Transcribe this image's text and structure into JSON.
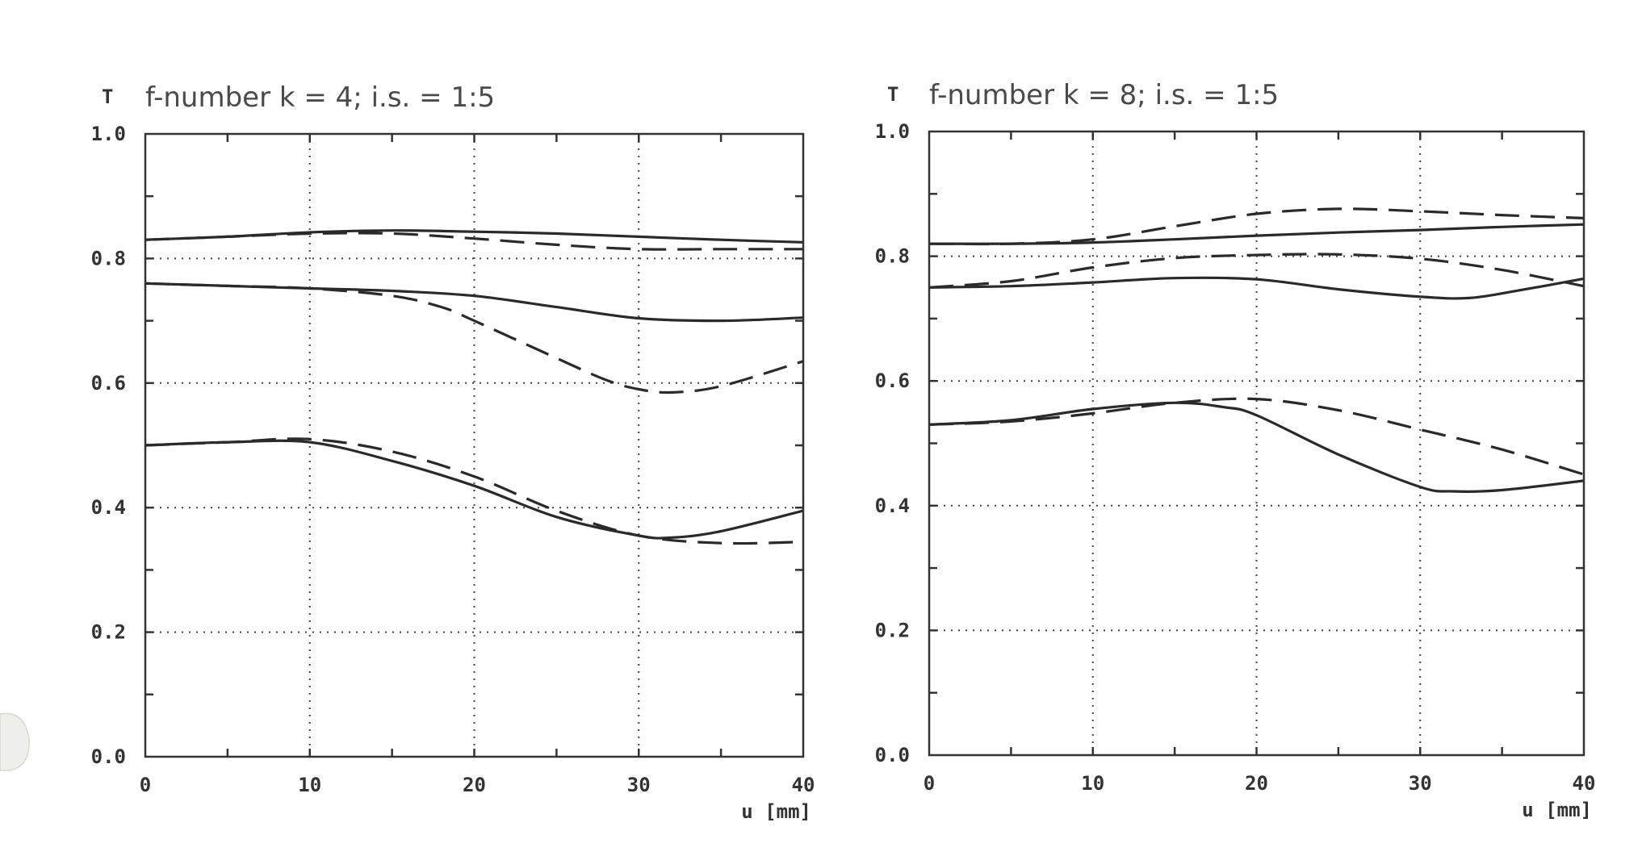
{
  "chart_data": [
    {
      "type": "line",
      "title": "f-number k = 4; i.s. = 1:5",
      "ylabel": "T",
      "xlabel": "u [mm]",
      "xlim": [
        0,
        40
      ],
      "ylim": [
        0,
        1.0
      ],
      "xticks": [
        0,
        10,
        20,
        30,
        40
      ],
      "yticks": [
        "0.0",
        "0.2",
        "0.4",
        "0.6",
        "0.8",
        "1.0"
      ],
      "grid": true,
      "series": [
        {
          "style": "solid",
          "x": [
            0,
            5,
            10,
            15,
            20,
            25,
            30,
            35,
            40
          ],
          "y": [
            0.83,
            0.835,
            0.842,
            0.845,
            0.843,
            0.84,
            0.835,
            0.83,
            0.826
          ]
        },
        {
          "style": "dashed",
          "x": [
            0,
            5,
            10,
            15,
            20,
            25,
            30,
            35,
            40
          ],
          "y": [
            0.83,
            0.835,
            0.84,
            0.84,
            0.832,
            0.822,
            0.815,
            0.815,
            0.815
          ]
        },
        {
          "style": "solid",
          "x": [
            0,
            5,
            10,
            15,
            20,
            25,
            30,
            35,
            40
          ],
          "y": [
            0.76,
            0.756,
            0.752,
            0.748,
            0.74,
            0.722,
            0.704,
            0.7,
            0.705
          ]
        },
        {
          "style": "dashed",
          "x": [
            0,
            5,
            10,
            15,
            18,
            20,
            25,
            28,
            30,
            32,
            35,
            40
          ],
          "y": [
            0.76,
            0.756,
            0.752,
            0.74,
            0.722,
            0.7,
            0.64,
            0.605,
            0.59,
            0.585,
            0.595,
            0.635
          ]
        },
        {
          "style": "solid",
          "x": [
            0,
            5,
            10,
            15,
            20,
            25,
            30,
            32,
            35,
            40
          ],
          "y": [
            0.5,
            0.505,
            0.505,
            0.475,
            0.435,
            0.385,
            0.355,
            0.352,
            0.362,
            0.395
          ]
        },
        {
          "style": "dashed",
          "x": [
            0,
            5,
            10,
            15,
            20,
            25,
            30,
            35,
            40
          ],
          "y": [
            0.5,
            0.505,
            0.51,
            0.49,
            0.45,
            0.395,
            0.355,
            0.343,
            0.345
          ]
        }
      ]
    },
    {
      "type": "line",
      "title": "f-number k = 8; i.s. = 1:5",
      "ylabel": "T",
      "xlabel": "u [mm]",
      "xlim": [
        0,
        40
      ],
      "ylim": [
        0,
        1.0
      ],
      "xticks": [
        0,
        10,
        20,
        30,
        40
      ],
      "yticks": [
        "0.0",
        "0.2",
        "0.4",
        "0.6",
        "0.8",
        "1.0"
      ],
      "grid": true,
      "series": [
        {
          "style": "solid",
          "x": [
            0,
            5,
            10,
            15,
            20,
            25,
            30,
            35,
            40
          ],
          "y": [
            0.82,
            0.82,
            0.822,
            0.827,
            0.833,
            0.838,
            0.842,
            0.847,
            0.851
          ]
        },
        {
          "style": "dashed",
          "x": [
            0,
            5,
            10,
            15,
            20,
            25,
            30,
            35,
            40
          ],
          "y": [
            0.82,
            0.82,
            0.827,
            0.848,
            0.868,
            0.876,
            0.872,
            0.866,
            0.861
          ]
        },
        {
          "style": "solid",
          "x": [
            0,
            5,
            10,
            15,
            20,
            25,
            30,
            33,
            36,
            40
          ],
          "y": [
            0.75,
            0.752,
            0.758,
            0.765,
            0.763,
            0.747,
            0.735,
            0.733,
            0.745,
            0.764
          ]
        },
        {
          "style": "dashed",
          "x": [
            0,
            5,
            10,
            15,
            20,
            25,
            30,
            35,
            40
          ],
          "y": [
            0.75,
            0.76,
            0.782,
            0.797,
            0.802,
            0.803,
            0.796,
            0.778,
            0.752
          ]
        },
        {
          "style": "solid",
          "x": [
            0,
            5,
            10,
            15,
            18,
            20,
            25,
            30,
            32,
            35,
            40
          ],
          "y": [
            0.53,
            0.537,
            0.555,
            0.565,
            0.558,
            0.545,
            0.482,
            0.43,
            0.423,
            0.425,
            0.44
          ]
        },
        {
          "style": "dashed",
          "x": [
            0,
            5,
            10,
            15,
            20,
            25,
            30,
            35,
            40
          ],
          "y": [
            0.53,
            0.535,
            0.548,
            0.565,
            0.571,
            0.553,
            0.522,
            0.49,
            0.45
          ]
        }
      ]
    }
  ]
}
